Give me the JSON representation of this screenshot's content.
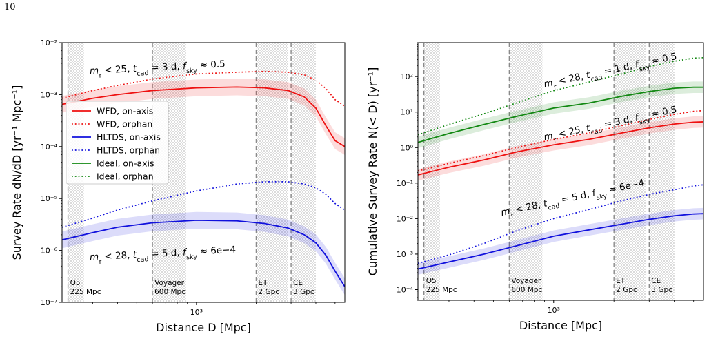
{
  "page_number": "10",
  "chart_data": [
    {
      "type": "line",
      "xlabel": "Distance D [Mpc]",
      "ylabel": "Survey Rate dN/dD [yr⁻¹ Mpc⁻¹]",
      "xscale": "log",
      "yscale": "log",
      "xlim": [
        210,
        5600
      ],
      "ylim": [
        1e-07,
        0.01
      ],
      "x_tick_labels": [
        "10³"
      ],
      "y_tick_labels": [
        "10⁻⁷",
        "10⁻⁶",
        "10⁻⁵",
        "10⁻⁴",
        "10⁻³",
        "10⁻²"
      ],
      "y_ticks": [
        1e-07,
        1e-06,
        1e-05,
        0.0001,
        0.001,
        0.01
      ],
      "legend_position": "upper-left",
      "legend": [
        {
          "label": "WFD, on-axis",
          "color": "#ee1111",
          "style": "solid"
        },
        {
          "label": "WFD, orphan",
          "color": "#ee1111",
          "style": "dotted"
        },
        {
          "label": "HLTDS, on-axis",
          "color": "#1111dd",
          "style": "solid"
        },
        {
          "label": "HLTDS, orphan",
          "color": "#1111dd",
          "style": "dotted"
        },
        {
          "label": "Ideal, on-axis",
          "color": "#118811",
          "style": "solid"
        },
        {
          "label": "Ideal, orphan",
          "color": "#118811",
          "style": "dotted"
        }
      ],
      "detectors": [
        {
          "name": "O5",
          "dist": "225 Mpc",
          "x0": 225,
          "x1": 270
        },
        {
          "name": "Voyager",
          "dist": "600 Mpc",
          "x0": 600,
          "x1": 880
        },
        {
          "name": "ET",
          "dist": "2 Gpc",
          "x0": 2000,
          "x1": 2900
        },
        {
          "name": "CE",
          "dist": "3 Gpc",
          "x0": 3000,
          "x1": 4000
        }
      ],
      "annotations": [
        {
          "text": "m_r < 25, t_cad = 3 d, f_sky ≈ 0.5",
          "x": 290,
          "y": 0.0025,
          "angle": -3
        },
        {
          "text": "m_r < 28, t_cad = 5 d, f_sky ≈ 6e−4",
          "x": 290,
          "y": 6.5e-07,
          "angle": -3
        }
      ],
      "series": [
        {
          "name": "WFD, on-axis",
          "color": "#ee1111",
          "style": "solid",
          "band": true,
          "x": [
            210,
            300,
            400,
            600,
            1000,
            1600,
            2200,
            2900,
            3500,
            4000,
            4500,
            5000,
            5600
          ],
          "y": [
            0.00065,
            0.00085,
            0.001,
            0.0012,
            0.00135,
            0.0014,
            0.00135,
            0.0012,
            0.0009,
            0.00055,
            0.00025,
            0.00013,
            0.0001
          ]
        },
        {
          "name": "WFD, orphan",
          "color": "#ee1111",
          "style": "dotted",
          "band": false,
          "x": [
            210,
            300,
            400,
            600,
            1000,
            1600,
            2200,
            2900,
            3500,
            4000,
            4500,
            5000,
            5600
          ],
          "y": [
            0.00085,
            0.0012,
            0.0015,
            0.002,
            0.0025,
            0.0027,
            0.0028,
            0.0027,
            0.0024,
            0.0019,
            0.0013,
            0.0008,
            0.0006
          ]
        },
        {
          "name": "HLTDS, on-axis",
          "color": "#1111dd",
          "style": "solid",
          "band": true,
          "x": [
            210,
            300,
            400,
            600,
            1000,
            1600,
            2200,
            2900,
            3500,
            4000,
            4500,
            5000,
            5600
          ],
          "y": [
            1.6e-06,
            2.2e-06,
            2.8e-06,
            3.4e-06,
            3.8e-06,
            3.7e-06,
            3.3e-06,
            2.7e-06,
            2e-06,
            1.4e-06,
            8e-07,
            4e-07,
            2e-07
          ]
        },
        {
          "name": "HLTDS, orphan",
          "color": "#1111dd",
          "style": "dotted",
          "band": false,
          "x": [
            210,
            300,
            400,
            600,
            1000,
            1600,
            2200,
            2900,
            3500,
            4000,
            4500,
            5000,
            5600
          ],
          "y": [
            2.8e-06,
            4.2e-06,
            6e-06,
            9e-06,
            1.4e-05,
            1.9e-05,
            2.1e-05,
            2.1e-05,
            1.9e-05,
            1.6e-05,
            1.2e-05,
            8e-06,
            6e-06
          ]
        }
      ]
    },
    {
      "type": "line",
      "xlabel": "Distance [Mpc]",
      "ylabel": "Cumulative Survey Rate N(< D) [yr⁻¹]",
      "xscale": "log",
      "yscale": "log",
      "xlim": [
        210,
        5600
      ],
      "ylim": [
        5e-05,
        900
      ],
      "x_tick_labels": [
        "10³"
      ],
      "y_tick_labels": [
        "10⁻⁴",
        "10⁻³",
        "10⁻²",
        "10⁻¹",
        "10⁰",
        "10¹",
        "10²"
      ],
      "y_ticks": [
        0.0001,
        0.001,
        0.01,
        0.1,
        1,
        10,
        100
      ],
      "detectors": [
        {
          "name": "O5",
          "dist": "225 Mpc",
          "x0": 225,
          "x1": 270
        },
        {
          "name": "Voyager",
          "dist": "600 Mpc",
          "x0": 600,
          "x1": 880
        },
        {
          "name": "ET",
          "dist": "2 Gpc",
          "x0": 2000,
          "x1": 2900
        },
        {
          "name": "CE",
          "dist": "3 Gpc",
          "x0": 3000,
          "x1": 4000
        }
      ],
      "annotations": [
        {
          "text": "m_r < 28, t_cad = 1 d, f_sky ≈ 0.5",
          "x": 900,
          "y": 50,
          "angle": -12
        },
        {
          "text": "m_r < 25, t_cad = 3 d, f_sky ≈ 0.5",
          "x": 900,
          "y": 1.6,
          "angle": -12
        },
        {
          "text": "m_r < 28, t_cad = 5 d, f_sky ≈ 6e−4",
          "x": 550,
          "y": 0.012,
          "angle": -12
        }
      ],
      "series": [
        {
          "name": "Ideal, on-axis",
          "color": "#118811",
          "style": "solid",
          "band": true,
          "x": [
            210,
            300,
            450,
            650,
            1000,
            1500,
            2200,
            3000,
            4000,
            5000,
            5600
          ],
          "y": [
            1.4,
            2.5,
            4.5,
            7.5,
            13,
            18,
            28,
            38,
            47,
            50,
            50
          ]
        },
        {
          "name": "Ideal, orphan",
          "color": "#118811",
          "style": "dotted",
          "band": false,
          "x": [
            210,
            300,
            450,
            650,
            1000,
            1500,
            2200,
            3000,
            4000,
            5000,
            5600
          ],
          "y": [
            2.3,
            4.5,
            9,
            18,
            40,
            70,
            120,
            190,
            270,
            330,
            340
          ]
        },
        {
          "name": "WFD, on-axis",
          "color": "#ee1111",
          "style": "solid",
          "band": true,
          "x": [
            210,
            300,
            450,
            650,
            1000,
            1500,
            2200,
            3000,
            4000,
            5000,
            5600
          ],
          "y": [
            0.17,
            0.28,
            0.45,
            0.75,
            1.2,
            1.7,
            2.6,
            3.6,
            4.6,
            5.2,
            5.3
          ]
        },
        {
          "name": "WFD, orphan",
          "color": "#ee1111",
          "style": "dotted",
          "band": false,
          "x": [
            210,
            300,
            450,
            650,
            1000,
            1500,
            2200,
            3000,
            4000,
            5000,
            5600
          ],
          "y": [
            0.22,
            0.36,
            0.6,
            1.0,
            1.7,
            2.6,
            4.2,
            6.2,
            8.6,
            10.5,
            11
          ]
        },
        {
          "name": "HLTDS, on-axis",
          "color": "#1111dd",
          "style": "solid",
          "band": true,
          "x": [
            210,
            300,
            450,
            650,
            1000,
            1500,
            2200,
            3000,
            4000,
            5000,
            5600
          ],
          "y": [
            0.00038,
            0.0006,
            0.001,
            0.0017,
            0.0032,
            0.0048,
            0.007,
            0.0095,
            0.012,
            0.0135,
            0.0138
          ]
        },
        {
          "name": "HLTDS, orphan",
          "color": "#1111dd",
          "style": "dotted",
          "band": false,
          "x": [
            210,
            300,
            450,
            650,
            1000,
            1500,
            2200,
            3000,
            4000,
            5000,
            5600
          ],
          "y": [
            0.00055,
            0.00095,
            0.002,
            0.0045,
            0.01,
            0.018,
            0.032,
            0.048,
            0.065,
            0.083,
            0.09
          ]
        }
      ]
    }
  ]
}
